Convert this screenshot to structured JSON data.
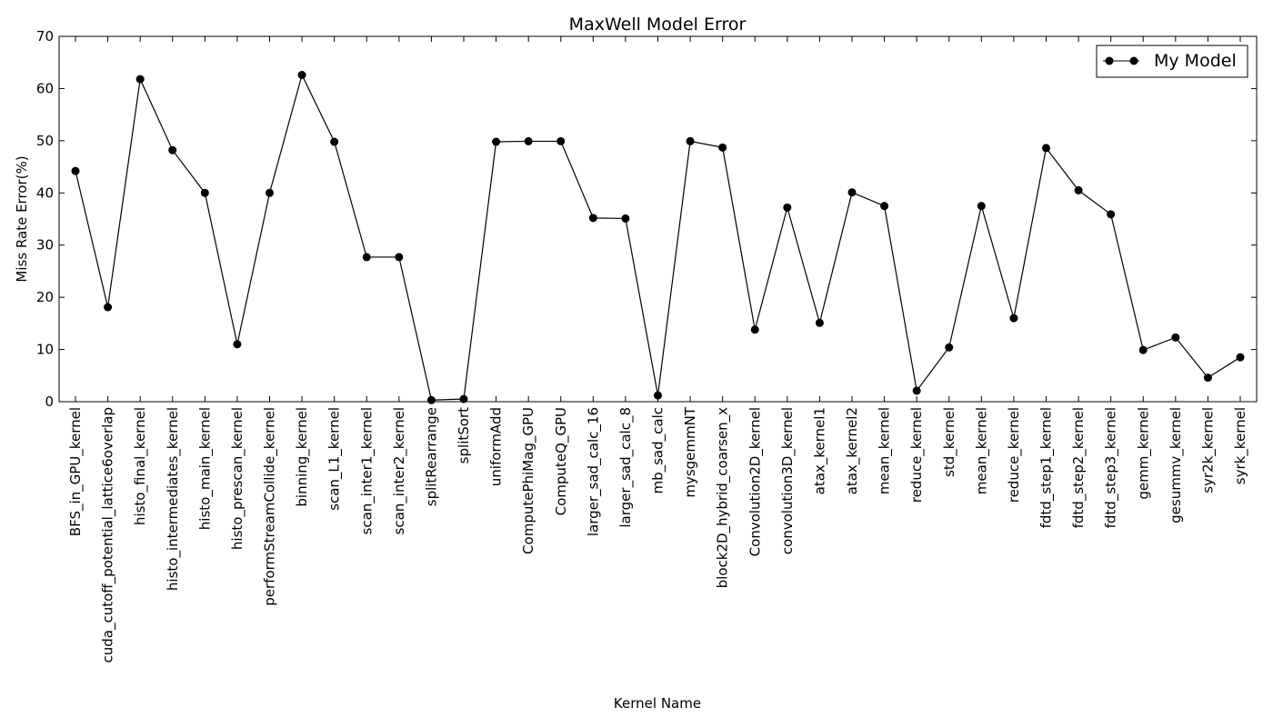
{
  "chart_data": {
    "type": "line",
    "title": "MaxWell Model Error",
    "xlabel": "Kernel Name",
    "ylabel": "Miss Rate Error(%)",
    "ylim": [
      0,
      70
    ],
    "yticks": [
      0,
      10,
      20,
      30,
      40,
      50,
      60,
      70
    ],
    "grid": false,
    "legend_position": "top-right",
    "colors": {
      "line": "#000000",
      "marker": "#000000"
    },
    "categories": [
      "BFS_in_GPU_kernel",
      "cuda_cutoff_potential_lattice6overlap",
      "histo_final_kernel",
      "histo_intermediates_kernel",
      "histo_main_kernel",
      "histo_prescan_kernel",
      "performStreamCollide_kernel",
      "binning_kernel",
      "scan_L1_kernel",
      "scan_inter1_kernel",
      "scan_inter2_kernel",
      "splitRearrange",
      "splitSort",
      "uniformAdd",
      "ComputePhiMag_GPU",
      "ComputeQ_GPU",
      "larger_sad_calc_16",
      "larger_sad_calc_8",
      "mb_sad_calc",
      "mysgemmNT",
      "block2D_hybrid_coarsen_x",
      "Convolution2D_kernel",
      "convolution3D_kernel",
      "atax_kernel1",
      "atax_kernel2",
      "mean_kernel",
      "reduce_kernel",
      "std_kernel",
      "mean_kernel",
      "reduce_kernel",
      "fdtd_step1_kernel",
      "fdtd_step2_kernel",
      "fdtd_step3_kernel",
      "gemm_kernel",
      "gesummv_kernel",
      "syr2k_kernel",
      "syrk_kernel"
    ],
    "series": [
      {
        "name": "My Model",
        "values": [
          44.2,
          18.1,
          61.8,
          48.2,
          40.0,
          11.0,
          40.0,
          62.6,
          49.8,
          27.7,
          27.7,
          0.3,
          0.5,
          49.8,
          49.9,
          49.9,
          35.2,
          35.1,
          1.2,
          49.9,
          48.7,
          13.8,
          37.2,
          15.1,
          40.1,
          37.5,
          2.1,
          10.4,
          37.5,
          16.0,
          48.6,
          40.5,
          35.9,
          9.9,
          12.3,
          4.6,
          8.5
        ]
      }
    ]
  }
}
